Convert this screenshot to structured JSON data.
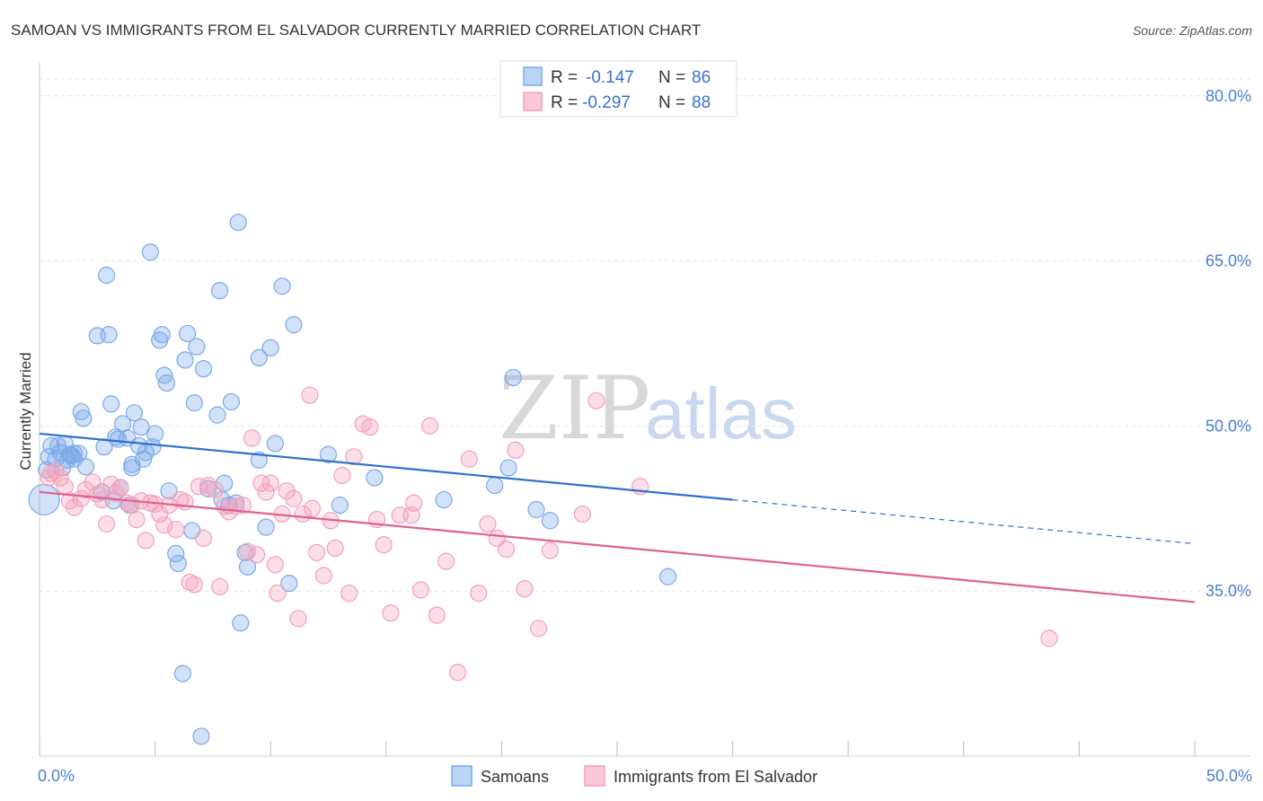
{
  "chart_data": {
    "type": "scatter",
    "title": "SAMOAN VS IMMIGRANTS FROM EL SALVADOR CURRENTLY MARRIED CORRELATION CHART",
    "source": "Source: ZipAtlas.com",
    "ylabel": "Currently Married",
    "xlim": [
      0,
      50
    ],
    "ylim": [
      20,
      83
    ],
    "y_ticks": [
      {
        "value": 35,
        "label": "35.0%"
      },
      {
        "value": 50,
        "label": "50.0%"
      },
      {
        "value": 65,
        "label": "65.0%"
      },
      {
        "value": 80,
        "label": "80.0%"
      }
    ],
    "x_tick_labels": [
      {
        "value": 0,
        "label": "0.0%"
      },
      {
        "value": 50,
        "label": "50.0%"
      }
    ],
    "legend_top": [
      {
        "r_label": "R =",
        "r_value": "-0.147",
        "n_label": "N =",
        "n_value": "86"
      },
      {
        "r_label": "R =",
        "r_value": "-0.297",
        "n_label": "N =",
        "n_value": "88"
      }
    ],
    "series": [
      {
        "name": "Samoans",
        "color": "#7aaae8",
        "line_color": "#2e6fd0",
        "trend": {
          "x0": 0,
          "y0": 49.3,
          "x1": 30,
          "y1": 43.3,
          "dash_to_x": 50,
          "dash_to_y": 39.3
        },
        "points": [
          [
            0.2,
            43.3
          ],
          [
            0.3,
            46.0
          ],
          [
            0.4,
            47.2
          ],
          [
            0.5,
            48.2
          ],
          [
            0.7,
            47.0
          ],
          [
            0.8,
            48.2
          ],
          [
            0.9,
            47.6
          ],
          [
            1.0,
            46.2
          ],
          [
            1.1,
            48.4
          ],
          [
            1.2,
            46.9
          ],
          [
            1.3,
            47.4
          ],
          [
            1.4,
            47.3
          ],
          [
            1.5,
            47.0
          ],
          [
            1.7,
            47.5
          ],
          [
            1.8,
            51.3
          ],
          [
            1.9,
            50.7
          ],
          [
            2.0,
            46.3
          ],
          [
            2.5,
            58.2
          ],
          [
            2.7,
            44.0
          ],
          [
            2.8,
            48.1
          ],
          [
            2.9,
            63.7
          ],
          [
            3.0,
            58.3
          ],
          [
            3.1,
            52.0
          ],
          [
            3.2,
            43.2
          ],
          [
            3.3,
            49.0
          ],
          [
            3.4,
            48.8
          ],
          [
            3.5,
            44.4
          ],
          [
            3.6,
            50.2
          ],
          [
            3.8,
            48.9
          ],
          [
            3.9,
            42.8
          ],
          [
            4.0,
            46.5
          ],
          [
            4.1,
            51.2
          ],
          [
            4.3,
            48.2
          ],
          [
            4.4,
            49.9
          ],
          [
            4.5,
            47.0
          ],
          [
            4.6,
            47.6
          ],
          [
            4.8,
            65.8
          ],
          [
            4.9,
            48.1
          ],
          [
            5.0,
            49.3
          ],
          [
            5.2,
            57.8
          ],
          [
            5.3,
            58.3
          ],
          [
            5.4,
            54.6
          ],
          [
            5.5,
            53.9
          ],
          [
            5.6,
            44.1
          ],
          [
            5.9,
            38.4
          ],
          [
            6.0,
            37.5
          ],
          [
            6.2,
            27.5
          ],
          [
            6.3,
            56.0
          ],
          [
            6.4,
            58.4
          ],
          [
            6.6,
            40.5
          ],
          [
            6.7,
            52.1
          ],
          [
            6.8,
            57.2
          ],
          [
            7.0,
            21.8
          ],
          [
            7.1,
            55.2
          ],
          [
            7.3,
            44.3
          ],
          [
            7.7,
            51.0
          ],
          [
            7.8,
            62.3
          ],
          [
            7.9,
            43.3
          ],
          [
            8.0,
            44.8
          ],
          [
            8.2,
            42.8
          ],
          [
            8.3,
            52.2
          ],
          [
            8.5,
            43.0
          ],
          [
            8.6,
            68.5
          ],
          [
            8.7,
            32.1
          ],
          [
            8.9,
            38.5
          ],
          [
            9.0,
            37.2
          ],
          [
            9.5,
            56.2
          ],
          [
            9.8,
            40.8
          ],
          [
            10.0,
            57.1
          ],
          [
            10.2,
            48.4
          ],
          [
            10.5,
            62.7
          ],
          [
            10.8,
            35.7
          ],
          [
            11.0,
            59.2
          ],
          [
            12.5,
            47.4
          ],
          [
            13.0,
            42.8
          ],
          [
            14.5,
            45.3
          ],
          [
            17.5,
            43.3
          ],
          [
            19.7,
            44.6
          ],
          [
            20.3,
            46.2
          ],
          [
            20.5,
            54.4
          ],
          [
            21.5,
            42.4
          ],
          [
            22.1,
            41.4
          ],
          [
            27.2,
            36.3
          ],
          [
            9.5,
            46.9
          ],
          [
            4.0,
            46.2
          ],
          [
            1.5,
            47.5
          ]
        ]
      },
      {
        "name": "Immigrants from El Salvador",
        "color": "#f4a0bb",
        "line_color": "#e06090",
        "trend": {
          "x0": 0,
          "y0": 44.0,
          "x1": 50,
          "y1": 34.0
        },
        "points": [
          [
            0.4,
            45.3
          ],
          [
            0.5,
            45.7
          ],
          [
            0.7,
            45.9
          ],
          [
            0.9,
            45.3
          ],
          [
            1.1,
            44.5
          ],
          [
            1.3,
            43.2
          ],
          [
            1.5,
            42.6
          ],
          [
            1.8,
            43.4
          ],
          [
            2.0,
            44.2
          ],
          [
            2.3,
            44.9
          ],
          [
            2.5,
            43.8
          ],
          [
            2.7,
            43.3
          ],
          [
            2.9,
            41.1
          ],
          [
            3.1,
            44.7
          ],
          [
            3.3,
            43.9
          ],
          [
            3.5,
            44.4
          ],
          [
            3.8,
            43.0
          ],
          [
            4.0,
            42.8
          ],
          [
            4.2,
            41.5
          ],
          [
            4.4,
            43.2
          ],
          [
            4.6,
            39.6
          ],
          [
            4.8,
            43.0
          ],
          [
            5.0,
            42.9
          ],
          [
            5.2,
            42.0
          ],
          [
            5.4,
            41.0
          ],
          [
            5.6,
            42.8
          ],
          [
            5.9,
            40.6
          ],
          [
            6.1,
            43.3
          ],
          [
            6.3,
            43.1
          ],
          [
            6.5,
            35.8
          ],
          [
            6.7,
            35.6
          ],
          [
            6.9,
            44.5
          ],
          [
            7.1,
            39.8
          ],
          [
            7.3,
            44.6
          ],
          [
            7.6,
            44.2
          ],
          [
            7.8,
            35.4
          ],
          [
            8.0,
            42.7
          ],
          [
            8.2,
            42.2
          ],
          [
            8.5,
            42.7
          ],
          [
            8.8,
            42.8
          ],
          [
            9.0,
            38.6
          ],
          [
            9.2,
            48.9
          ],
          [
            9.4,
            38.3
          ],
          [
            9.6,
            44.8
          ],
          [
            9.8,
            44.0
          ],
          [
            10.0,
            44.8
          ],
          [
            10.2,
            37.4
          ],
          [
            10.3,
            34.8
          ],
          [
            10.5,
            42.0
          ],
          [
            10.7,
            44.1
          ],
          [
            11.0,
            43.4
          ],
          [
            11.2,
            32.5
          ],
          [
            11.4,
            42.0
          ],
          [
            11.7,
            52.8
          ],
          [
            12.0,
            38.5
          ],
          [
            12.3,
            36.4
          ],
          [
            12.6,
            41.4
          ],
          [
            12.8,
            38.9
          ],
          [
            13.1,
            45.5
          ],
          [
            13.4,
            34.8
          ],
          [
            13.6,
            47.2
          ],
          [
            14.0,
            50.2
          ],
          [
            14.3,
            49.9
          ],
          [
            14.6,
            41.5
          ],
          [
            14.9,
            39.2
          ],
          [
            15.2,
            33.0
          ],
          [
            15.6,
            41.9
          ],
          [
            16.1,
            41.9
          ],
          [
            16.5,
            35.1
          ],
          [
            16.9,
            50.0
          ],
          [
            17.2,
            32.8
          ],
          [
            17.6,
            37.7
          ],
          [
            18.1,
            27.6
          ],
          [
            18.6,
            47.0
          ],
          [
            19.0,
            34.8
          ],
          [
            19.4,
            41.1
          ],
          [
            19.8,
            39.8
          ],
          [
            20.2,
            38.8
          ],
          [
            20.6,
            47.8
          ],
          [
            21.0,
            35.2
          ],
          [
            21.6,
            31.6
          ],
          [
            22.1,
            38.7
          ],
          [
            23.5,
            42.0
          ],
          [
            24.1,
            52.3
          ],
          [
            26.0,
            44.5
          ],
          [
            43.7,
            30.7
          ],
          [
            11.8,
            42.5
          ],
          [
            16.2,
            43.0
          ]
        ]
      }
    ]
  },
  "bottom_legend": [
    {
      "label": "Samoans"
    },
    {
      "label": "Immigrants from El Salvador"
    }
  ],
  "watermark": {
    "zip": "ZIP",
    "atlas": "atlas"
  }
}
